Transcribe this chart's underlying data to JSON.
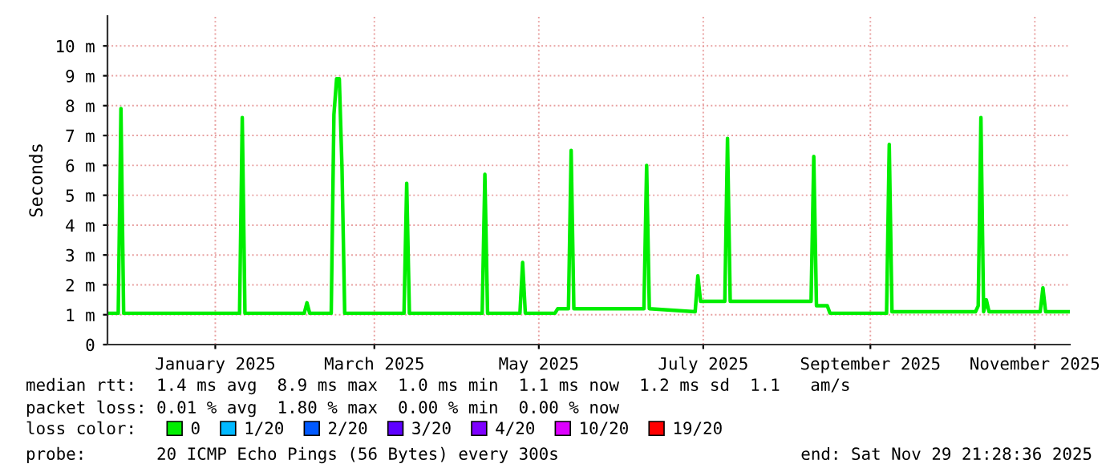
{
  "chart_data": {
    "type": "line",
    "ylabel": "Seconds",
    "x": [
      "2024-12-07",
      "2024-12-11",
      "2024-12-12",
      "2024-12-13",
      "2025-01-25",
      "2025-01-26",
      "2025-01-27",
      "2025-02-18",
      "2025-02-19",
      "2025-02-20",
      "2025-02-28",
      "2025-03-01",
      "2025-03-02",
      "2025-03-03",
      "2025-03-04",
      "2025-03-05",
      "2025-03-27",
      "2025-03-28",
      "2025-03-29",
      "2025-04-25",
      "2025-04-26",
      "2025-04-27",
      "2025-05-09",
      "2025-05-10",
      "2025-05-11",
      "2025-05-22",
      "2025-05-23",
      "2025-05-27",
      "2025-05-28",
      "2025-05-29",
      "2025-06-24",
      "2025-06-25",
      "2025-06-26",
      "2025-07-13",
      "2025-07-14",
      "2025-07-15",
      "2025-07-24",
      "2025-07-25",
      "2025-07-26",
      "2025-08-25",
      "2025-08-26",
      "2025-08-27",
      "2025-08-31",
      "2025-09-01",
      "2025-09-22",
      "2025-09-23",
      "2025-09-24",
      "2025-10-25",
      "2025-10-26",
      "2025-10-27",
      "2025-10-28",
      "2025-10-29",
      "2025-10-30",
      "2025-11-18",
      "2025-11-19",
      "2025-11-20",
      "2025-11-29"
    ],
    "series": [
      {
        "name": "0",
        "color": "#00ee00",
        "values": [
          1.05,
          1.05,
          7.9,
          1.05,
          1.05,
          7.6,
          1.05,
          1.05,
          1.4,
          1.05,
          1.05,
          7.7,
          8.9,
          8.9,
          5.9,
          1.05,
          1.05,
          5.4,
          1.05,
          1.05,
          5.7,
          1.05,
          1.05,
          2.75,
          1.05,
          1.05,
          1.2,
          1.2,
          6.5,
          1.2,
          1.2,
          6.0,
          1.2,
          1.1,
          2.3,
          1.45,
          1.45,
          6.9,
          1.45,
          1.45,
          6.3,
          1.3,
          1.3,
          1.05,
          1.05,
          6.7,
          1.1,
          1.1,
          1.3,
          7.6,
          1.1,
          1.5,
          1.1,
          1.1,
          1.9,
          1.1,
          1.1
        ]
      },
      {
        "name": "1/20",
        "color": "#00b8ff",
        "values": [
          null,
          null,
          null,
          null,
          null,
          null,
          null,
          null,
          null,
          null,
          null,
          null,
          null,
          null,
          null,
          null,
          null,
          null,
          null,
          null,
          null,
          null,
          null,
          null,
          null,
          null,
          null,
          null,
          null,
          null,
          null,
          null,
          null,
          null,
          null,
          null,
          null,
          null,
          null,
          null,
          null,
          null,
          null,
          null,
          null,
          null,
          null,
          null,
          null,
          null,
          null,
          null,
          null,
          null,
          null,
          null,
          null
        ]
      },
      {
        "name": "2/20",
        "color": "#0059ff",
        "values": [
          null,
          null,
          null,
          null,
          null,
          null,
          null,
          null,
          null,
          null,
          null,
          null,
          null,
          null,
          null,
          null,
          null,
          null,
          null,
          null,
          null,
          null,
          null,
          null,
          null,
          null,
          null,
          null,
          null,
          null,
          null,
          null,
          null,
          null,
          null,
          null,
          null,
          null,
          null,
          null,
          null,
          null,
          null,
          null,
          null,
          null,
          null,
          null,
          null,
          null,
          null,
          null,
          null,
          null,
          null,
          null,
          null
        ]
      },
      {
        "name": "3/20",
        "color": "#5e00ff",
        "values": [
          null,
          null,
          null,
          null,
          null,
          null,
          null,
          null,
          null,
          null,
          null,
          null,
          null,
          null,
          null,
          null,
          null,
          null,
          null,
          null,
          null,
          null,
          null,
          null,
          null,
          null,
          null,
          null,
          null,
          null,
          null,
          null,
          null,
          null,
          null,
          null,
          null,
          null,
          null,
          null,
          null,
          null,
          null,
          null,
          null,
          null,
          null,
          null,
          null,
          null,
          null,
          null,
          null,
          null,
          null,
          null,
          null
        ]
      },
      {
        "name": "4/20",
        "color": "#7e00ff",
        "values": [
          null,
          null,
          null,
          null,
          null,
          null,
          null,
          null,
          null,
          null,
          null,
          null,
          null,
          null,
          null,
          null,
          null,
          null,
          null,
          null,
          null,
          null,
          null,
          null,
          null,
          null,
          null,
          null,
          null,
          null,
          null,
          null,
          null,
          null,
          null,
          null,
          null,
          null,
          null,
          null,
          null,
          null,
          null,
          null,
          null,
          null,
          null,
          null,
          null,
          null,
          null,
          null,
          null,
          null,
          null,
          null,
          null
        ]
      },
      {
        "name": "10/20",
        "color": "#dd00ff",
        "values": [
          null,
          null,
          null,
          null,
          null,
          null,
          null,
          null,
          null,
          null,
          null,
          null,
          null,
          null,
          null,
          null,
          null,
          null,
          null,
          null,
          null,
          null,
          null,
          null,
          null,
          null,
          null,
          null,
          null,
          null,
          null,
          null,
          null,
          null,
          null,
          null,
          null,
          null,
          null,
          null,
          null,
          null,
          null,
          null,
          null,
          null,
          null,
          null,
          null,
          null,
          null,
          null,
          null,
          null,
          null,
          null,
          null
        ]
      },
      {
        "name": "19/20",
        "color": "#ff0000",
        "values": [
          null,
          null,
          null,
          null,
          null,
          null,
          null,
          null,
          null,
          null,
          null,
          null,
          null,
          null,
          null,
          null,
          null,
          null,
          null,
          null,
          null,
          null,
          null,
          null,
          null,
          null,
          null,
          null,
          null,
          null,
          null,
          null,
          null,
          null,
          null,
          null,
          null,
          null,
          null,
          null,
          null,
          null,
          null,
          null,
          null,
          null,
          null,
          null,
          null,
          null,
          null,
          null,
          null,
          null,
          null,
          null,
          null
        ]
      }
    ],
    "xlim": [
      "2024-12-07",
      "2025-11-29"
    ],
    "xticks": [
      {
        "value": "2025-01-16",
        "label": "January 2025"
      },
      {
        "value": "2025-03-16",
        "label": "March 2025"
      },
      {
        "value": "2025-05-16",
        "label": "May 2025"
      },
      {
        "value": "2025-07-16",
        "label": "July 2025"
      },
      {
        "value": "2025-09-16",
        "label": "September 2025"
      },
      {
        "value": "2025-11-16",
        "label": "November 2025"
      }
    ],
    "ylim": [
      0,
      11
    ],
    "yticks": [
      0,
      {
        "value": 1,
        "label": "1 m"
      },
      {
        "value": 2,
        "label": "2 m"
      },
      {
        "value": 3,
        "label": "3 m"
      },
      {
        "value": 4,
        "label": "4 m"
      },
      {
        "value": 5,
        "label": "5 m"
      },
      {
        "value": 6,
        "label": "6 m"
      },
      {
        "value": 7,
        "label": "7 m"
      },
      {
        "value": 8,
        "label": "8 m"
      },
      {
        "value": 9,
        "label": "9 m"
      },
      {
        "value": 10,
        "label": "10 m"
      }
    ],
    "grid": true,
    "legend": "bottom",
    "legend_title": "loss color:",
    "annotations": [
      "median rtt:  1.4 ms avg  8.9 ms max  1.0 ms min  1.1 ms now  1.2 ms sd  1.1   am/s",
      "packet loss: 0.01 % avg  1.80 % max  0.00 % min  0.00 % now",
      "probe:       20 ICMP Echo Pings (56 Bytes) every 300s",
      "end: Sat Nov 29 21:28:36 2025"
    ]
  }
}
